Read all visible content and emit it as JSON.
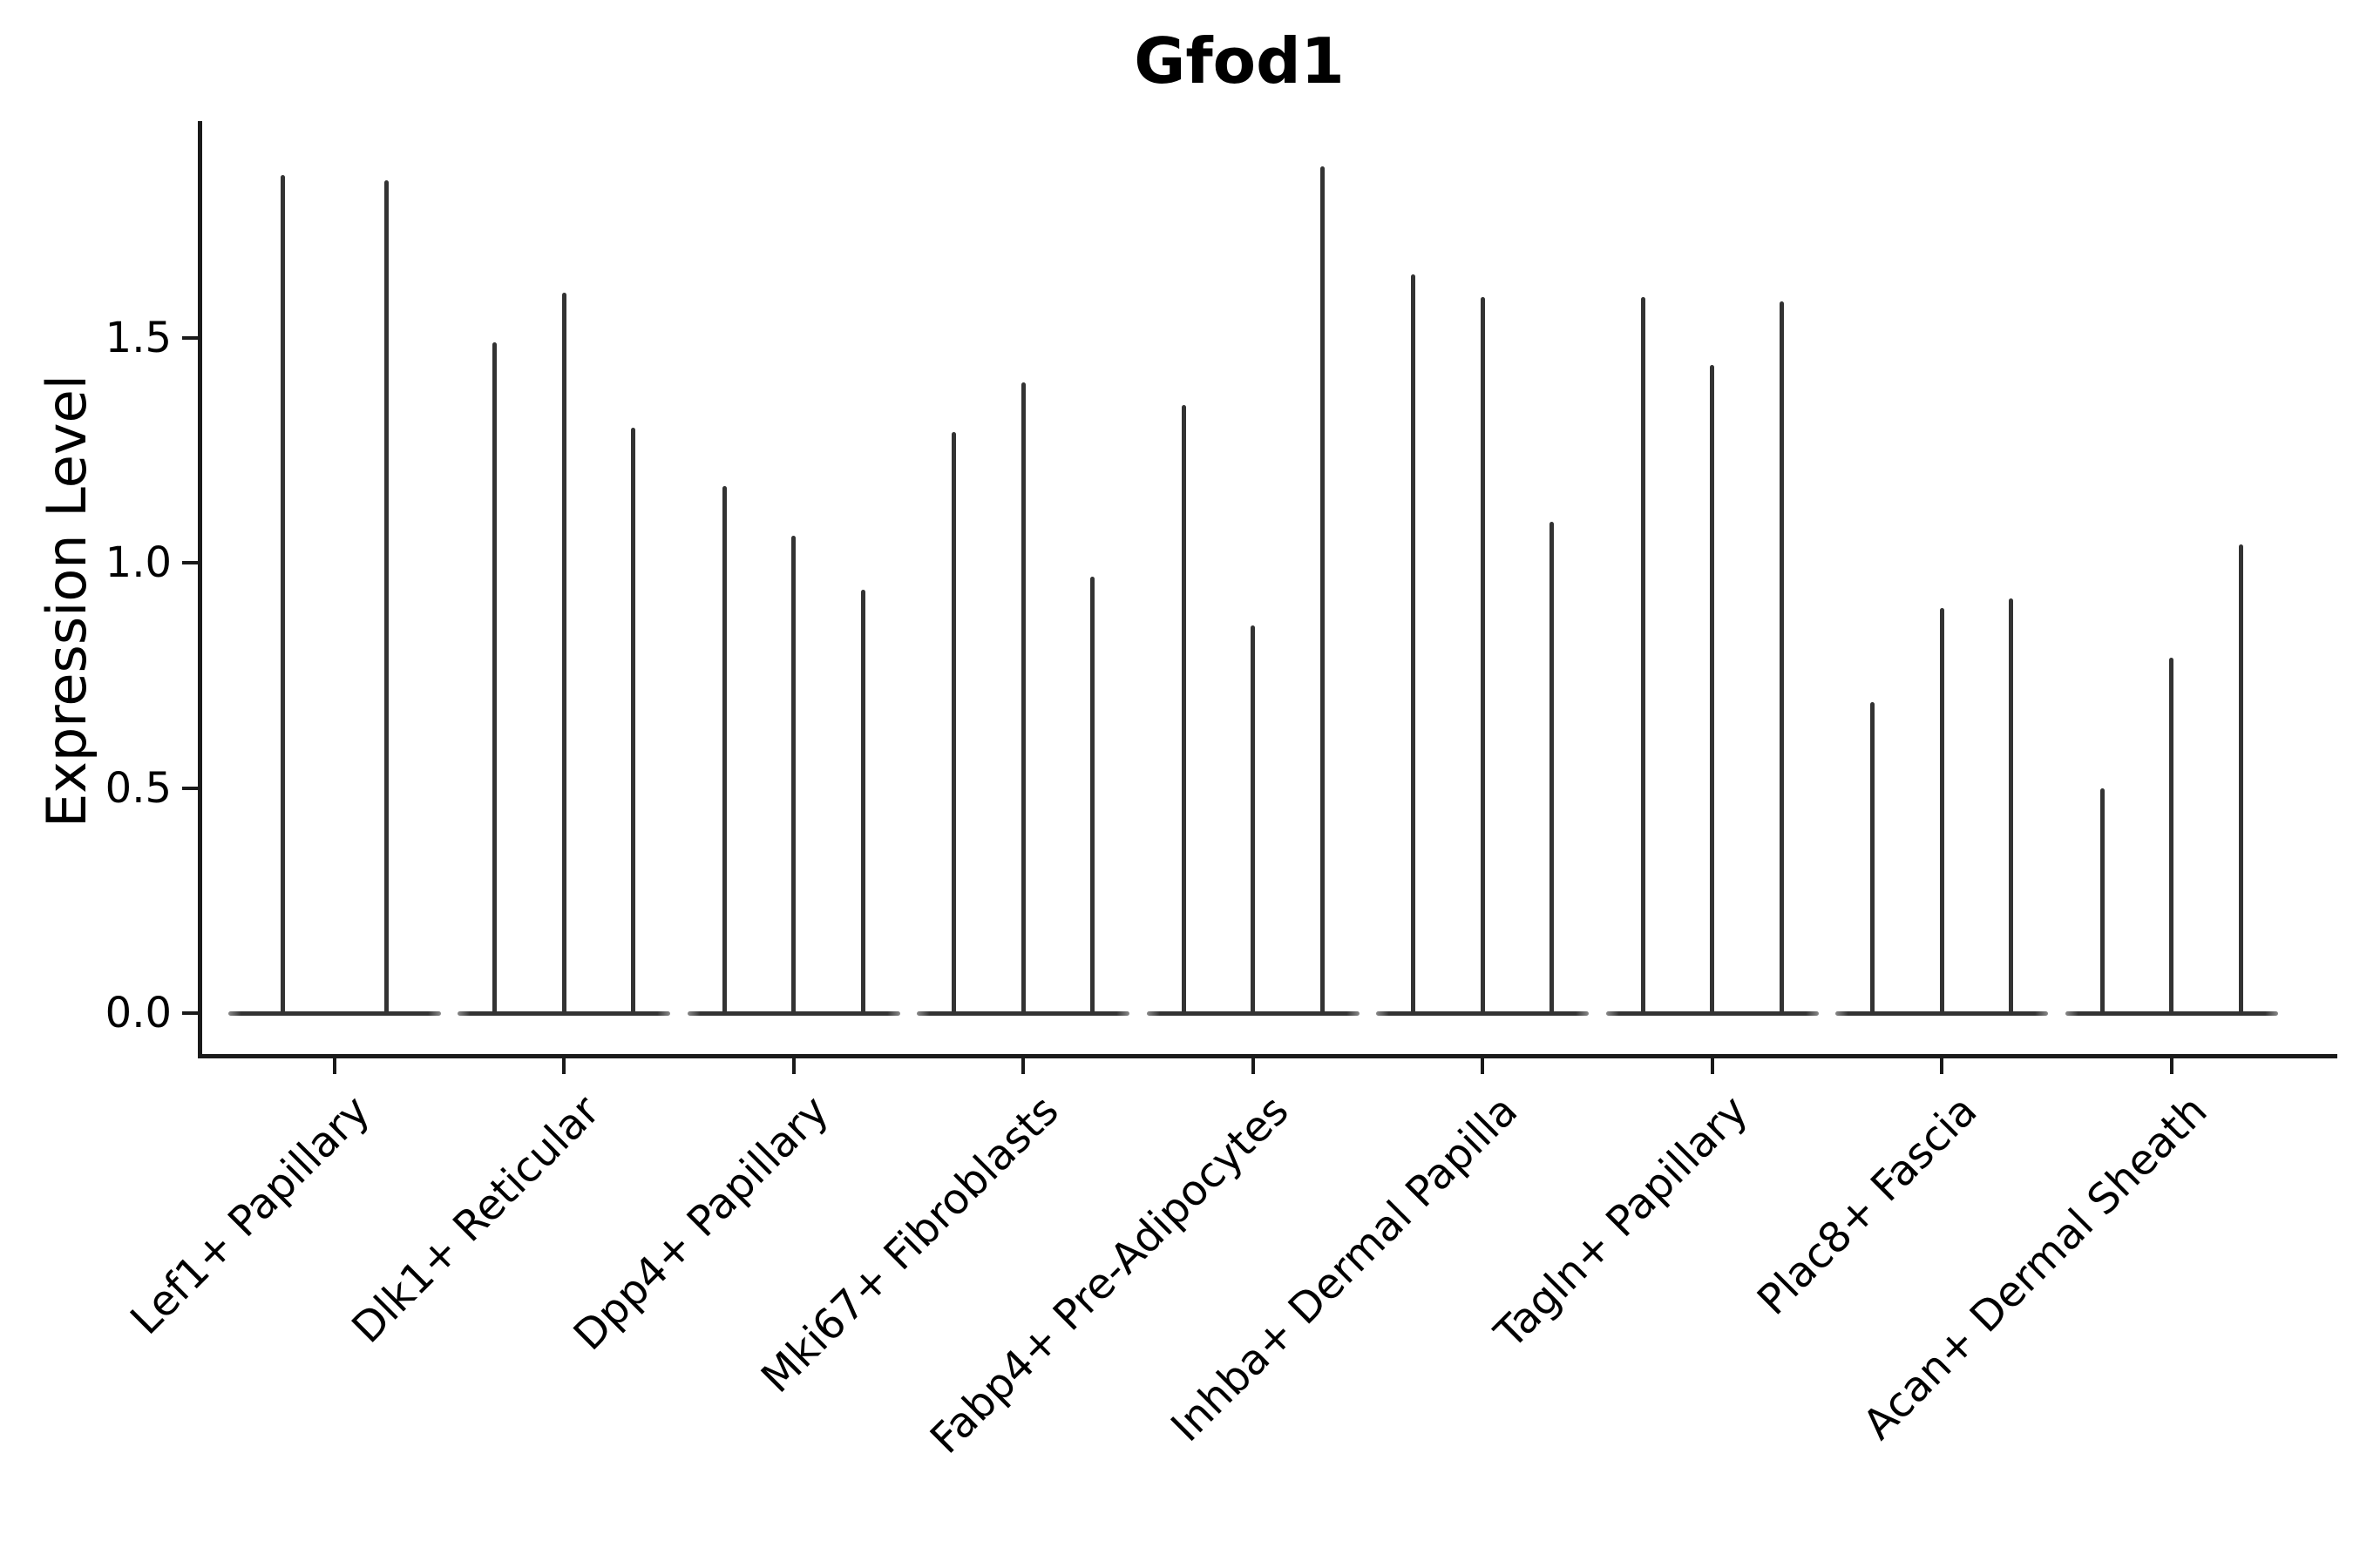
{
  "title": "Gfod1",
  "y_axis": {
    "label": "Expression Level",
    "tick_labels": [
      "0.0",
      "0.5",
      "1.0",
      "1.5"
    ],
    "tick_values": [
      0.0,
      0.5,
      1.0,
      1.5
    ]
  },
  "colors": {
    "violin": "#333333",
    "axis": "#1a1a1a",
    "text": "#000000",
    "background": "#ffffff"
  },
  "chart_data": {
    "type": "violin",
    "title": "Gfod1",
    "xlabel": "",
    "ylabel": "Expression Level",
    "ylim": [
      -0.09,
      1.98
    ],
    "yticks": [
      0.0,
      0.5,
      1.0,
      1.5
    ],
    "grid": false,
    "legend_position": "none",
    "description": "Needle-thin violins: wide flat base at expression 0 with a thin spike rising to the maximum expression value; 2-3 violins (split groups) per cell-type category",
    "categories": [
      "Lef1+ Papillary",
      "Dlk1+ Reticular",
      "Dpp4+ Papillary",
      "Mki67+ Fibroblasts",
      "Fabp4+ Pre-Adipocytes",
      "Inhba+ Dermal Papilla",
      "Tagln+ Papillary",
      "Plac8+ Fascia",
      "Acan+ Dermal Sheath"
    ],
    "groups": [
      {
        "label": "Lef1+ Papillary",
        "violin_max_values": [
          1.86,
          1.85
        ]
      },
      {
        "label": "Dlk1+ Reticular",
        "violin_max_values": [
          1.49,
          1.6,
          1.3
        ]
      },
      {
        "label": "Dpp4+ Papillary",
        "violin_max_values": [
          1.17,
          1.06,
          0.94
        ]
      },
      {
        "label": "Mki67+ Fibroblasts",
        "violin_max_values": [
          1.29,
          1.4,
          0.97
        ]
      },
      {
        "label": "Fabp4+ Pre-Adipocytes",
        "violin_max_values": [
          1.35,
          0.86,
          1.88
        ]
      },
      {
        "label": "Inhba+ Dermal Papilla",
        "violin_max_values": [
          1.64,
          1.59,
          1.09
        ]
      },
      {
        "label": "Tagln+ Papillary",
        "violin_max_values": [
          1.59,
          1.44,
          1.58
        ]
      },
      {
        "label": "Plac8+ Fascia",
        "violin_max_values": [
          0.69,
          0.9,
          0.92
        ]
      },
      {
        "label": "Acan+ Dermal Sheath",
        "violin_max_values": [
          0.5,
          0.79,
          1.04
        ]
      }
    ]
  }
}
